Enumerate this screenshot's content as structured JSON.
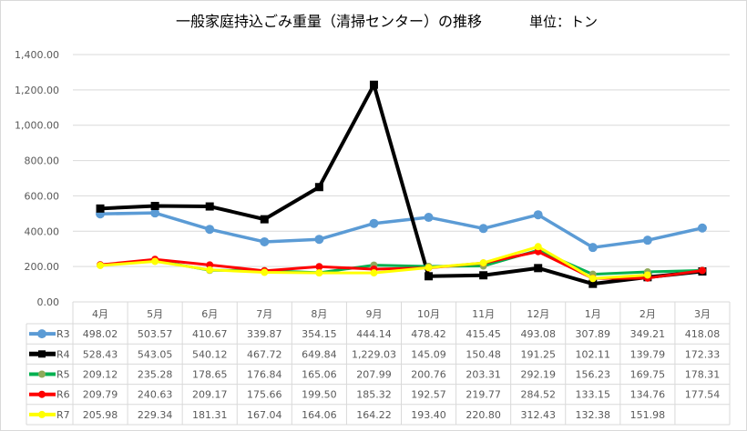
{
  "chart_data": {
    "type": "line",
    "title": "一般家庭持込ごみ重量（清掃センター）の推移",
    "unit_label": "単位：トン",
    "categories": [
      "4月",
      "5月",
      "6月",
      "7月",
      "8月",
      "9月",
      "10月",
      "11月",
      "12月",
      "1月",
      "2月",
      "3月"
    ],
    "ylim": [
      0,
      1400
    ],
    "yticks": [
      "0.00",
      "200.00",
      "400.00",
      "600.00",
      "800.00",
      "1,000.00",
      "1,200.00",
      "1,400.00"
    ],
    "grid": true,
    "legend": "data-table",
    "series": [
      {
        "name": "R3",
        "color": "#5B9BD5",
        "marker": "circle",
        "marker_color": "#5B9BD5",
        "values": [
          498.02,
          503.57,
          410.67,
          339.87,
          354.15,
          444.14,
          478.42,
          415.45,
          493.08,
          307.89,
          349.21,
          418.08
        ],
        "labels": [
          "498.02",
          "503.57",
          "410.67",
          "339.87",
          "354.15",
          "444.14",
          "478.42",
          "415.45",
          "493.08",
          "307.89",
          "349.21",
          "418.08"
        ]
      },
      {
        "name": "R4",
        "color": "#000000",
        "marker": "square",
        "marker_color": "#000000",
        "values": [
          528.43,
          543.05,
          540.12,
          467.72,
          649.84,
          1229.03,
          145.09,
          150.48,
          191.25,
          102.11,
          139.79,
          172.33
        ],
        "labels": [
          "528.43",
          "543.05",
          "540.12",
          "467.72",
          "649.84",
          "1,229.03",
          "145.09",
          "150.48",
          "191.25",
          "102.11",
          "139.79",
          "172.33"
        ]
      },
      {
        "name": "R5",
        "color": "#00B050",
        "marker": "circle",
        "marker_color": "#8FAA5A",
        "values": [
          209.12,
          235.28,
          178.65,
          176.84,
          165.06,
          207.99,
          200.76,
          203.31,
          292.19,
          156.23,
          169.75,
          178.31
        ],
        "labels": [
          "209.12",
          "235.28",
          "178.65",
          "176.84",
          "165.06",
          "207.99",
          "200.76",
          "203.31",
          "292.19",
          "156.23",
          "169.75",
          "178.31"
        ]
      },
      {
        "name": "R6",
        "color": "#FF0000",
        "marker": "circle",
        "marker_color": "#FF0000",
        "values": [
          209.79,
          240.63,
          209.17,
          175.66,
          199.5,
          185.32,
          192.57,
          219.77,
          284.52,
          133.15,
          134.76,
          177.54
        ],
        "labels": [
          "209.79",
          "240.63",
          "209.17",
          "175.66",
          "199.50",
          "185.32",
          "192.57",
          "219.77",
          "284.52",
          "133.15",
          "134.76",
          "177.54"
        ]
      },
      {
        "name": "R7",
        "color": "#FFFF00",
        "marker": "circle",
        "marker_color": "#FFFF00",
        "values": [
          205.98,
          229.34,
          181.31,
          167.04,
          164.06,
          164.22,
          193.4,
          220.8,
          312.43,
          132.38,
          151.98,
          null
        ],
        "labels": [
          "205.98",
          "229.34",
          "181.31",
          "167.04",
          "164.06",
          "164.22",
          "193.40",
          "220.80",
          "312.43",
          "132.38",
          "151.98",
          ""
        ]
      }
    ]
  }
}
